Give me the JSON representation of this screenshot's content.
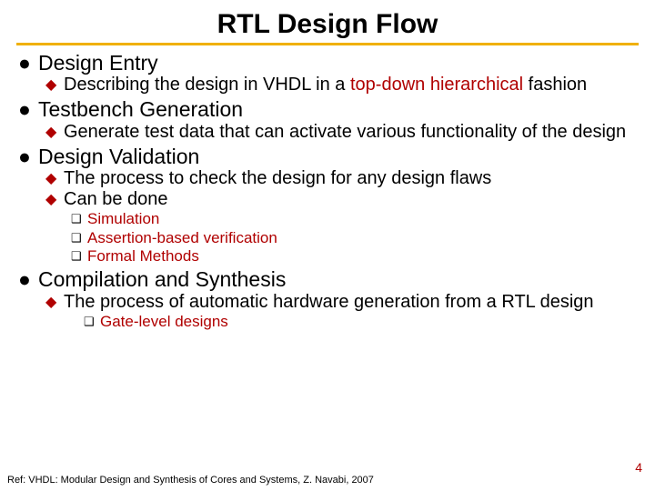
{
  "title": "RTL Design Flow",
  "sections": {
    "s1": {
      "heading": "Design Entry",
      "sub1_pre": "Describing the design in VHDL in a ",
      "sub1_hi": "top-down hierarchical",
      "sub1_post": " fashion"
    },
    "s2": {
      "heading": " Testbench Generation",
      "sub1": "Generate test data that can activate various functionality of the design"
    },
    "s3": {
      "heading": "Design Validation",
      "sub1": "The process to check the design for any design flaws",
      "sub2": "Can be done",
      "m1": "Simulation",
      "m2": "Assertion-based verification",
      "m3": "Formal Methods"
    },
    "s4": {
      "heading": " Compilation and Synthesis",
      "sub1": "The process of automatic hardware generation from a RTL design",
      "m1": " Gate-level designs"
    }
  },
  "footer": "Ref: VHDL: Modular Design and Synthesis of Cores and Systems, Z. Navabi, 2007",
  "page": "4",
  "colors": {
    "accent": "#b00000",
    "underline": "#f0b000",
    "text": "#000000",
    "bg": "#ffffff"
  },
  "typography": {
    "title_size": 30,
    "l1_size": 23,
    "l2_size": 20,
    "l3_size": 17,
    "footer_size": 11
  }
}
